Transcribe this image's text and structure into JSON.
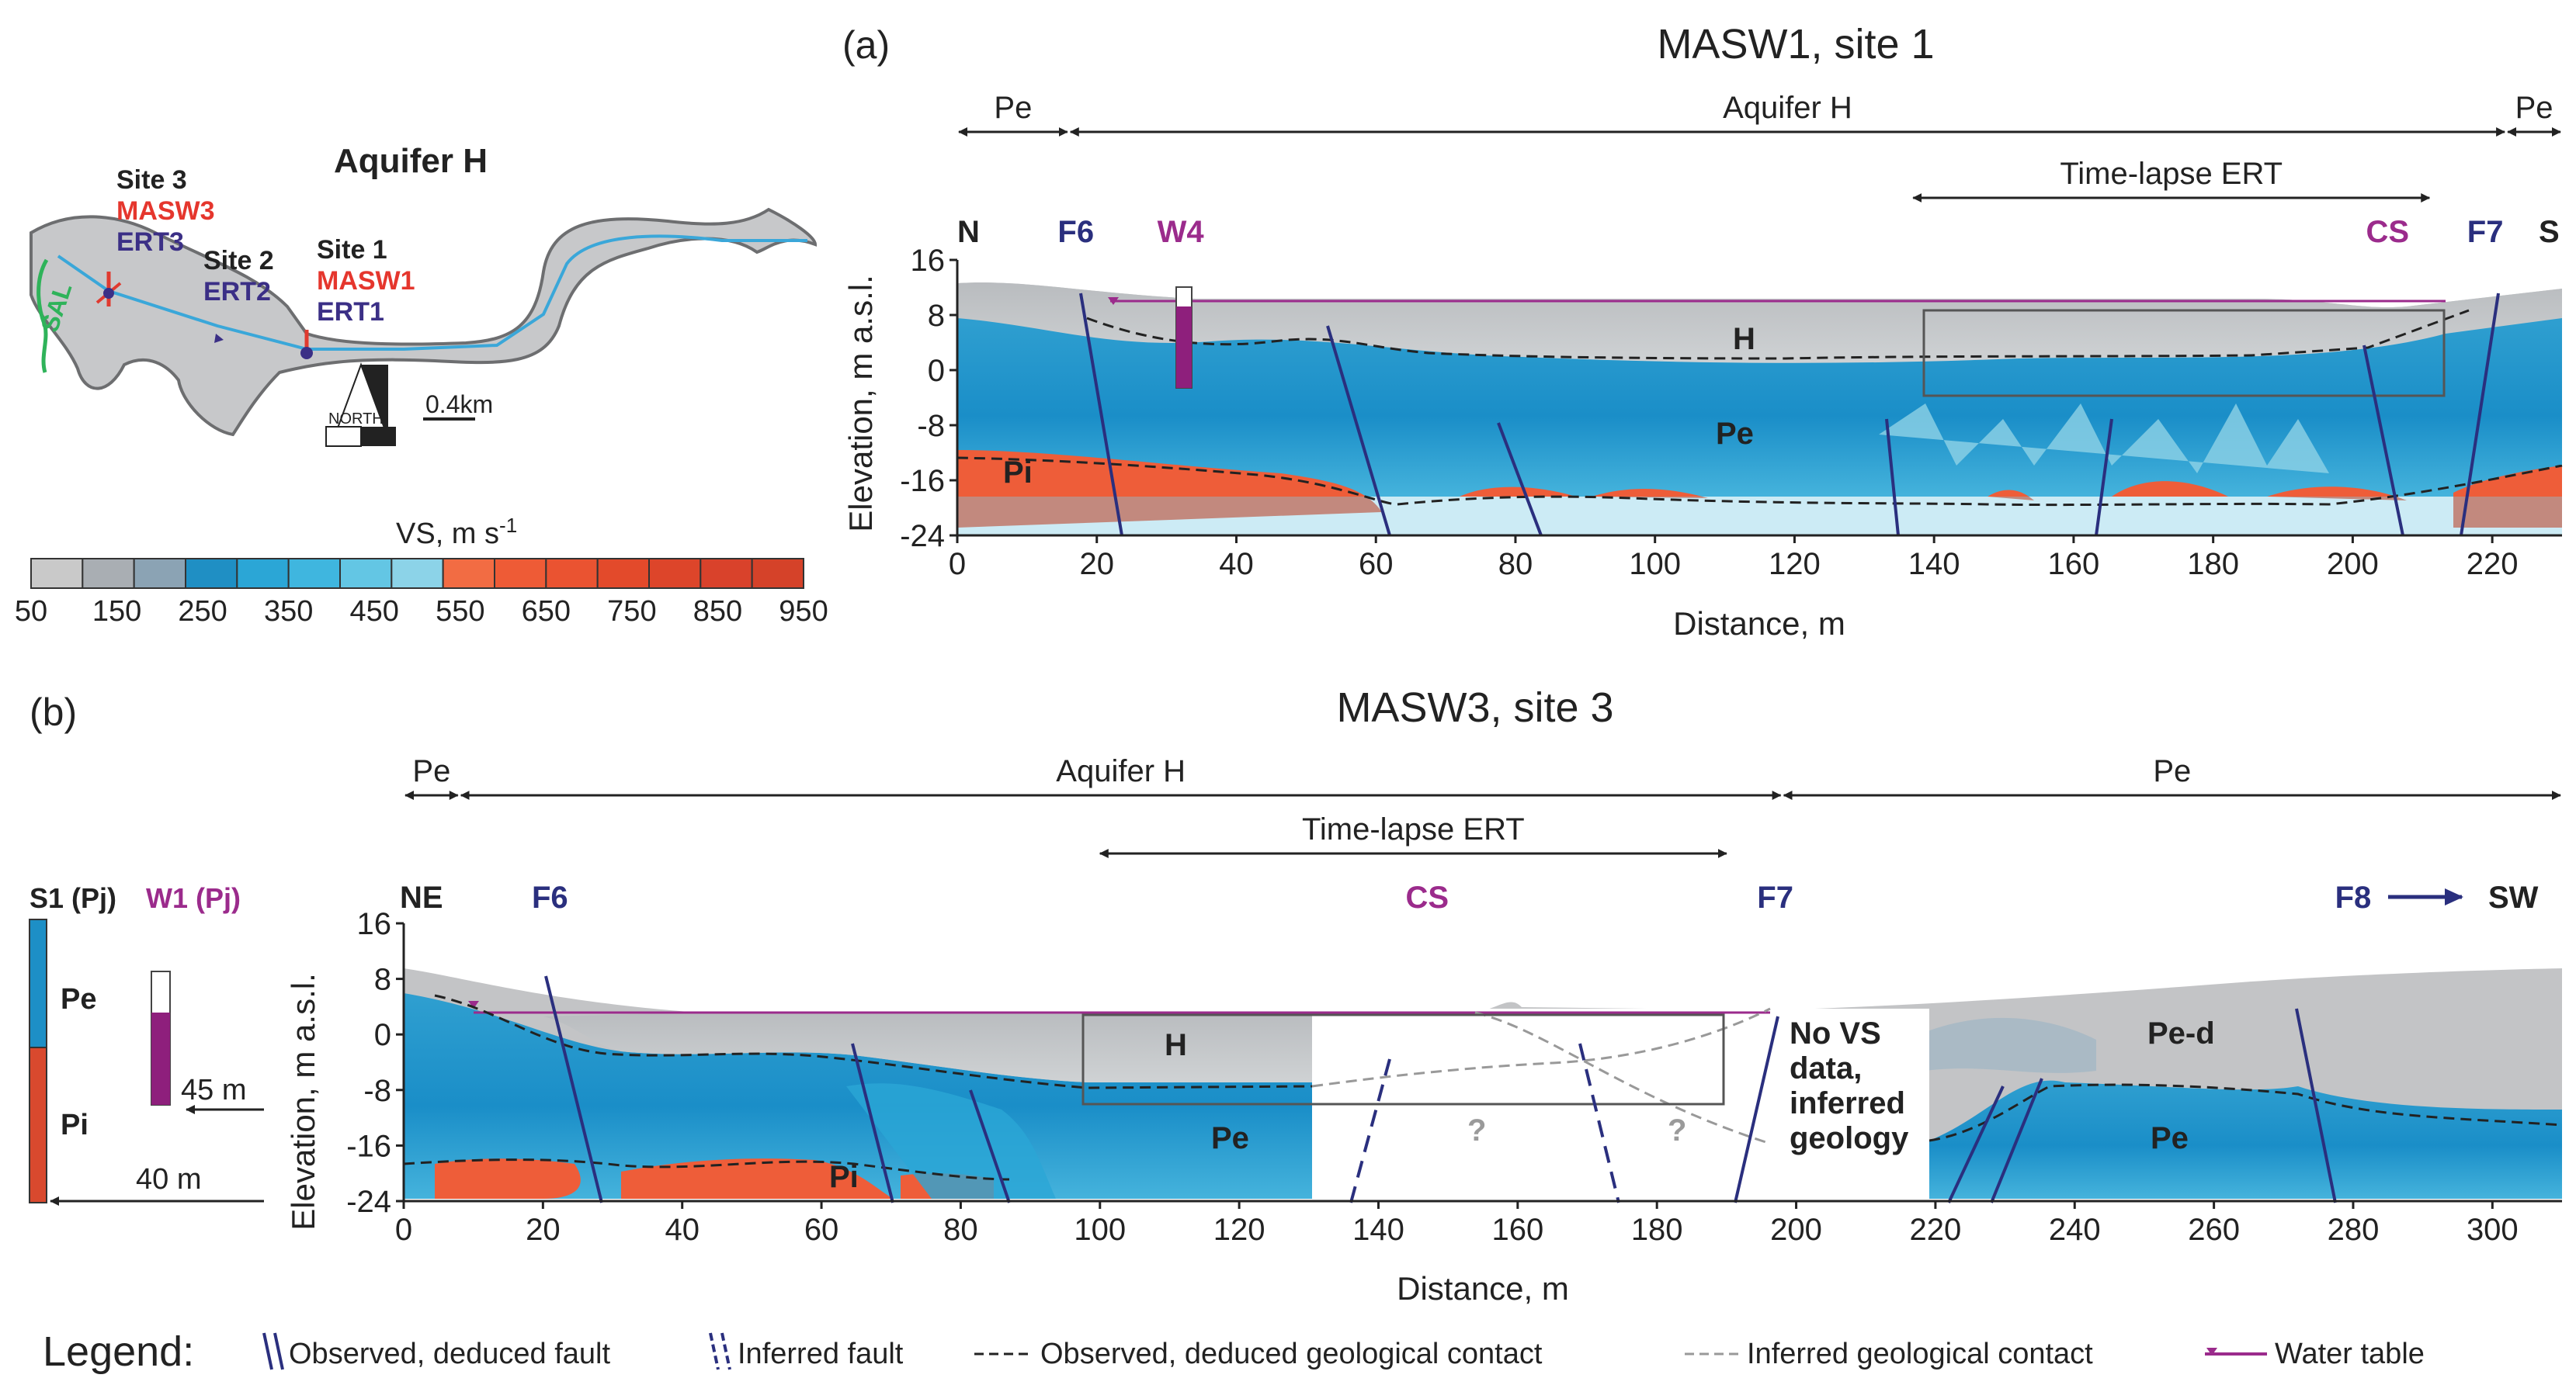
{
  "map": {
    "title": "Aquifer H",
    "sites": [
      {
        "name": "Site 3",
        "masw": "MASW3",
        "ert": "ERT3"
      },
      {
        "name": "Site 2",
        "ert": "ERT2"
      },
      {
        "name": "Site 1",
        "masw": "MASW1",
        "ert": "ERT1"
      }
    ],
    "river_label": "SAL",
    "north_label": "NORTH",
    "scale_label": "0.4km"
  },
  "colorbar": {
    "title_main": "VS, m s",
    "title_sup": "-1",
    "ticks": [
      "50",
      "150",
      "250",
      "350",
      "450",
      "550",
      "650",
      "750",
      "850",
      "950"
    ],
    "colors": [
      "#c9c9c9",
      "#a9aeb3",
      "#8ba3b4",
      "#1f8fc4",
      "#2ba6d6",
      "#3fb6df",
      "#63c6e4",
      "#8cd3e8",
      "#f26c43",
      "#ee5b36",
      "#ea5331",
      "#e34a2b",
      "#dd452a",
      "#d9422b",
      "#d54229"
    ]
  },
  "panel_a": {
    "letter": "(a)",
    "title": "MASW1, site 1",
    "units": [
      {
        "label": "Pe",
        "from": 0,
        "to": 16
      },
      {
        "label": "Aquifer H",
        "from": 16,
        "to": 222
      },
      {
        "label": "Pe",
        "from": 222,
        "to": 230
      }
    ],
    "ert": {
      "label": "Time-lapse ERT",
      "from": 137,
      "to": 211
    },
    "dir_left": "N",
    "dir_right": "S",
    "markers": [
      {
        "label": "F6",
        "x": 17,
        "kind": "fault"
      },
      {
        "label": "W4",
        "x": 32,
        "kind": "well"
      },
      {
        "label": "CS",
        "x": 205,
        "kind": "cs"
      },
      {
        "label": "F7",
        "x": 219,
        "kind": "fault"
      }
    ],
    "ylabel": "Elevation, m a.s.l.",
    "xlabel": "Distance, m",
    "yticks": [
      "16",
      "8",
      "0",
      "-8",
      "-16",
      "-24"
    ],
    "xticks": [
      "0",
      "20",
      "40",
      "60",
      "80",
      "100",
      "120",
      "140",
      "160",
      "180",
      "200",
      "220"
    ],
    "unit_labels": [
      "H",
      "Pe",
      "Pi"
    ]
  },
  "panel_b": {
    "letter": "(b)",
    "title": "MASW3, site 3",
    "units": [
      {
        "label": "Pe",
        "from": 0,
        "to": 8
      },
      {
        "label": "Aquifer H",
        "from": 8,
        "to": 198
      },
      {
        "label": "Pe",
        "from": 198,
        "to": 310
      }
    ],
    "ert": {
      "label": "Time-lapse ERT",
      "from": 100,
      "to": 190
    },
    "dir_left": "NE",
    "dir_right": "SW",
    "markers": [
      {
        "label": "F6",
        "x": 21,
        "kind": "fault"
      },
      {
        "label": "CS",
        "x": 147,
        "kind": "cs"
      },
      {
        "label": "F7",
        "x": 197,
        "kind": "fault"
      },
      {
        "label": "F8",
        "x": 280,
        "kind": "fault-arrow"
      }
    ],
    "ylabel": "Elevation, m a.s.l.",
    "xlabel": "Distance, m",
    "yticks": [
      "16",
      "8",
      "0",
      "-8",
      "-16",
      "-24"
    ],
    "xticks": [
      "0",
      "20",
      "40",
      "60",
      "80",
      "100",
      "120",
      "140",
      "160",
      "180",
      "200",
      "220",
      "240",
      "260",
      "280",
      "300"
    ],
    "unit_labels": [
      "H",
      "Pe",
      "Pi",
      "Pe-d",
      "Pe"
    ],
    "question_marks": [
      "?",
      "?"
    ],
    "no_data_note": [
      "No VS",
      "data,",
      "inferred",
      "geology"
    ]
  },
  "borehole": {
    "s1_label": "S1 (Pj)",
    "w1_label": "W1 (Pj)",
    "units": [
      "Pe",
      "Pi"
    ],
    "depth_w1": "45 m",
    "depth_s1": "40 m"
  },
  "legend": {
    "title": "Legend:",
    "items": [
      "Observed, deduced fault",
      "Inferred fault",
      "Observed, deduced geological contact",
      "Inferred geological contact",
      "Water table"
    ]
  },
  "colors": {
    "fault": "#2a2f7e",
    "magenta": "#9b2b8c",
    "red_text": "#e5362d",
    "purple_text": "#3b2f86",
    "grey": "#c3c4c6",
    "blue": "#1d8fc6",
    "orange": "#ee5d39"
  }
}
